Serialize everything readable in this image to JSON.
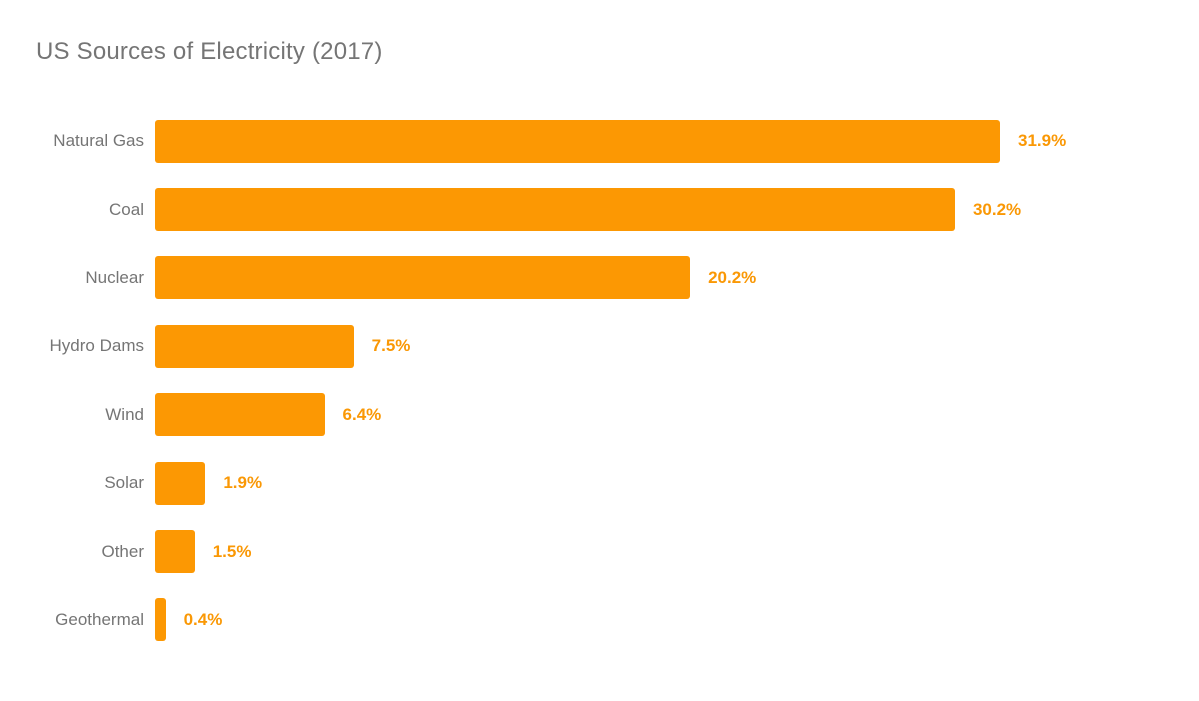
{
  "title": "US Sources of Electricity (2017)",
  "chart_data": {
    "type": "bar",
    "orientation": "horizontal",
    "title": "US Sources of Electricity (2017)",
    "categories": [
      "Natural Gas",
      "Coal",
      "Nuclear",
      "Hydro Dams",
      "Wind",
      "Solar",
      "Other",
      "Geothermal"
    ],
    "values": [
      31.9,
      30.2,
      20.2,
      7.5,
      6.4,
      1.9,
      1.5,
      0.4
    ],
    "value_labels": [
      "31.9%",
      "30.2%",
      "20.2%",
      "7.5%",
      "6.4%",
      "1.9%",
      "1.5%",
      "0.4%"
    ],
    "xlabel": "",
    "ylabel": "",
    "xlim": [
      0,
      31.9
    ],
    "grid": false,
    "legend": "none",
    "colors": {
      "bar": "#FC9803",
      "value_label": "#FA9805",
      "category_label": "#757575",
      "title": "#757575",
      "background": "#FFFFFF"
    }
  }
}
